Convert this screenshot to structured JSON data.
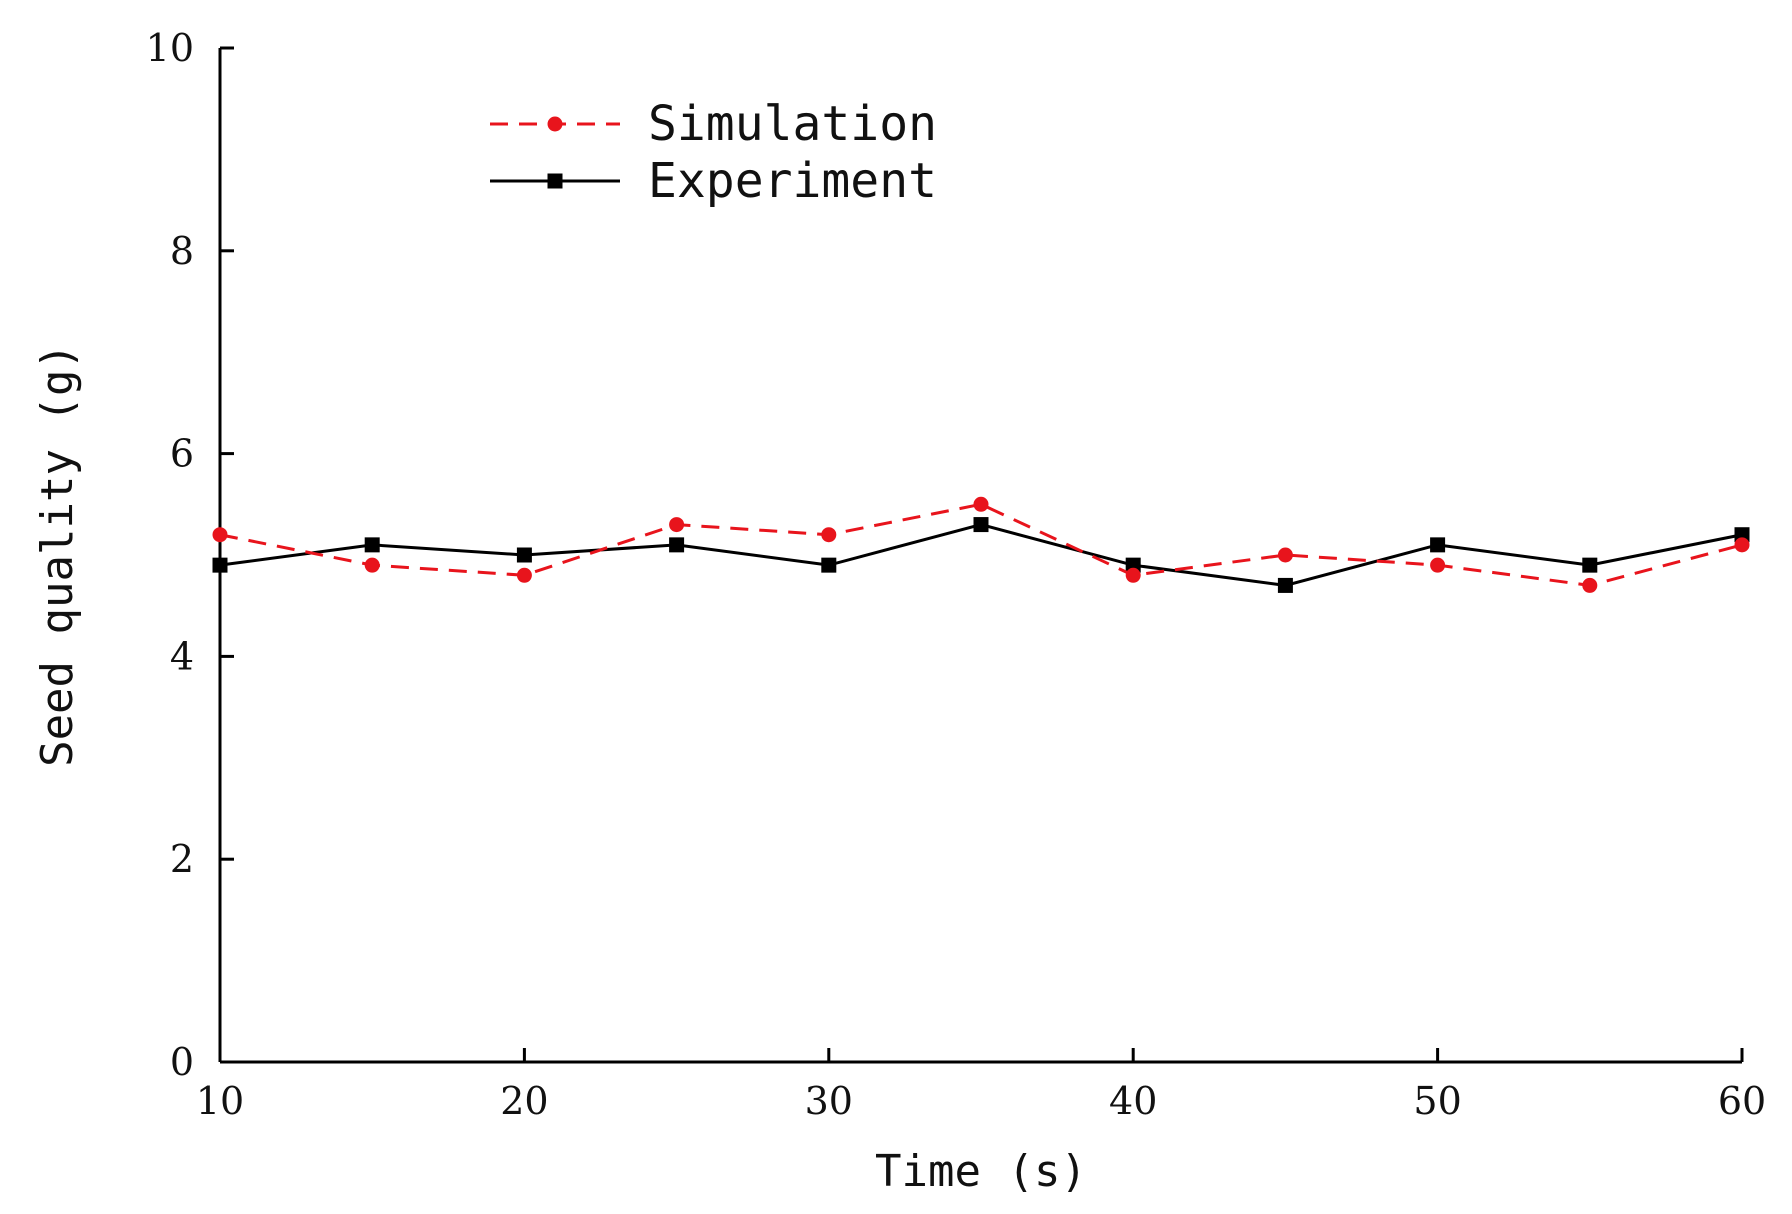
{
  "chart_data": {
    "type": "line",
    "title": "",
    "xlabel": "Time (s)",
    "ylabel": "Seed quality (g)",
    "xlim": [
      10,
      60
    ],
    "ylim": [
      0,
      10
    ],
    "x_ticks": [
      10,
      20,
      30,
      40,
      50,
      60
    ],
    "y_ticks": [
      0,
      2,
      4,
      6,
      8,
      10
    ],
    "grid": false,
    "legend_position": "top-left",
    "series": [
      {
        "name": "Simulation",
        "color": "#e8141c",
        "line_style": "dashed",
        "marker": "circle",
        "x": [
          10,
          15,
          20,
          25,
          30,
          35,
          40,
          45,
          50,
          55,
          60
        ],
        "y": [
          5.2,
          4.9,
          4.8,
          5.3,
          5.2,
          5.5,
          4.8,
          5.0,
          4.9,
          4.7,
          5.1
        ]
      },
      {
        "name": "Experiment",
        "color": "#000000",
        "line_style": "solid",
        "marker": "square",
        "x": [
          10,
          15,
          20,
          25,
          30,
          35,
          40,
          45,
          50,
          55,
          60
        ],
        "y": [
          4.9,
          5.1,
          5.0,
          5.1,
          4.9,
          5.3,
          4.9,
          4.7,
          5.1,
          4.9,
          5.2
        ]
      }
    ]
  }
}
